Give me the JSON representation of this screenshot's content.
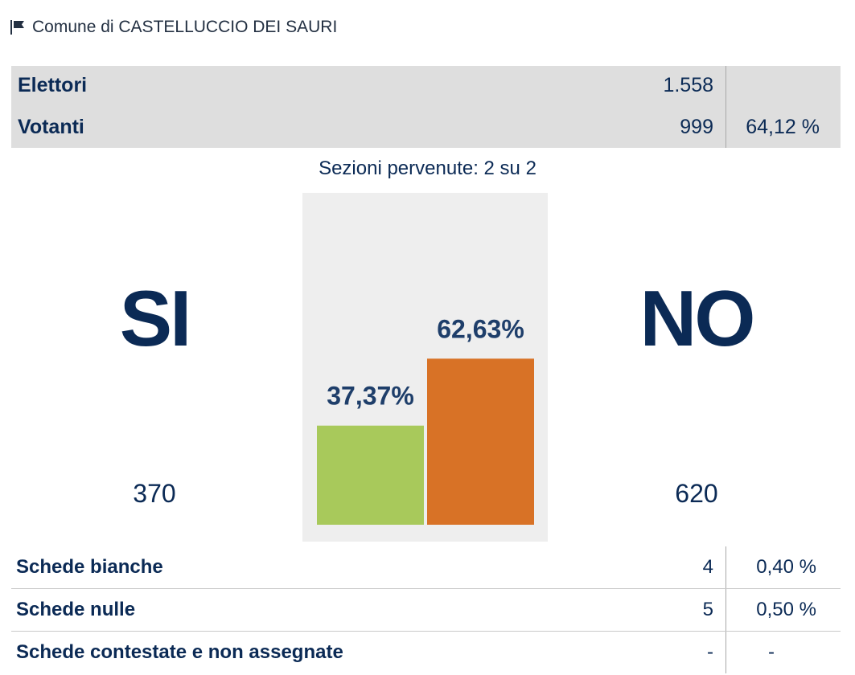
{
  "header": {
    "title": "Comune di CASTELLUCCIO DEI SAURI",
    "icon": "flag-icon"
  },
  "summary": {
    "elettori_label": "Elettori",
    "elettori_value": "1.558",
    "votanti_label": "Votanti",
    "votanti_value": "999",
    "votanti_pct": "64,12 %"
  },
  "sezioni": "Sezioni pervenute: 2 su 2",
  "results": {
    "si_label": "SI",
    "si_count": "370",
    "no_label": "NO",
    "no_count": "620"
  },
  "chart_data": {
    "type": "bar",
    "categories": [
      "SI",
      "NO"
    ],
    "values": [
      37.37,
      62.63
    ],
    "labels": [
      "37,37%",
      "62,63%"
    ],
    "colors": [
      "#a8c95b",
      "#d87226"
    ],
    "ylim": [
      0,
      100
    ]
  },
  "details": {
    "rows": [
      {
        "label": "Schede bianche",
        "value": "4",
        "pct": "0,40 %"
      },
      {
        "label": "Schede nulle",
        "value": "5",
        "pct": "0,50 %"
      },
      {
        "label": "Schede contestate e non assegnate",
        "value": "-",
        "pct": "-"
      }
    ]
  },
  "colors": {
    "text": "#0b2a55",
    "panel": "#eeeeee",
    "table_bg": "#dedede"
  }
}
